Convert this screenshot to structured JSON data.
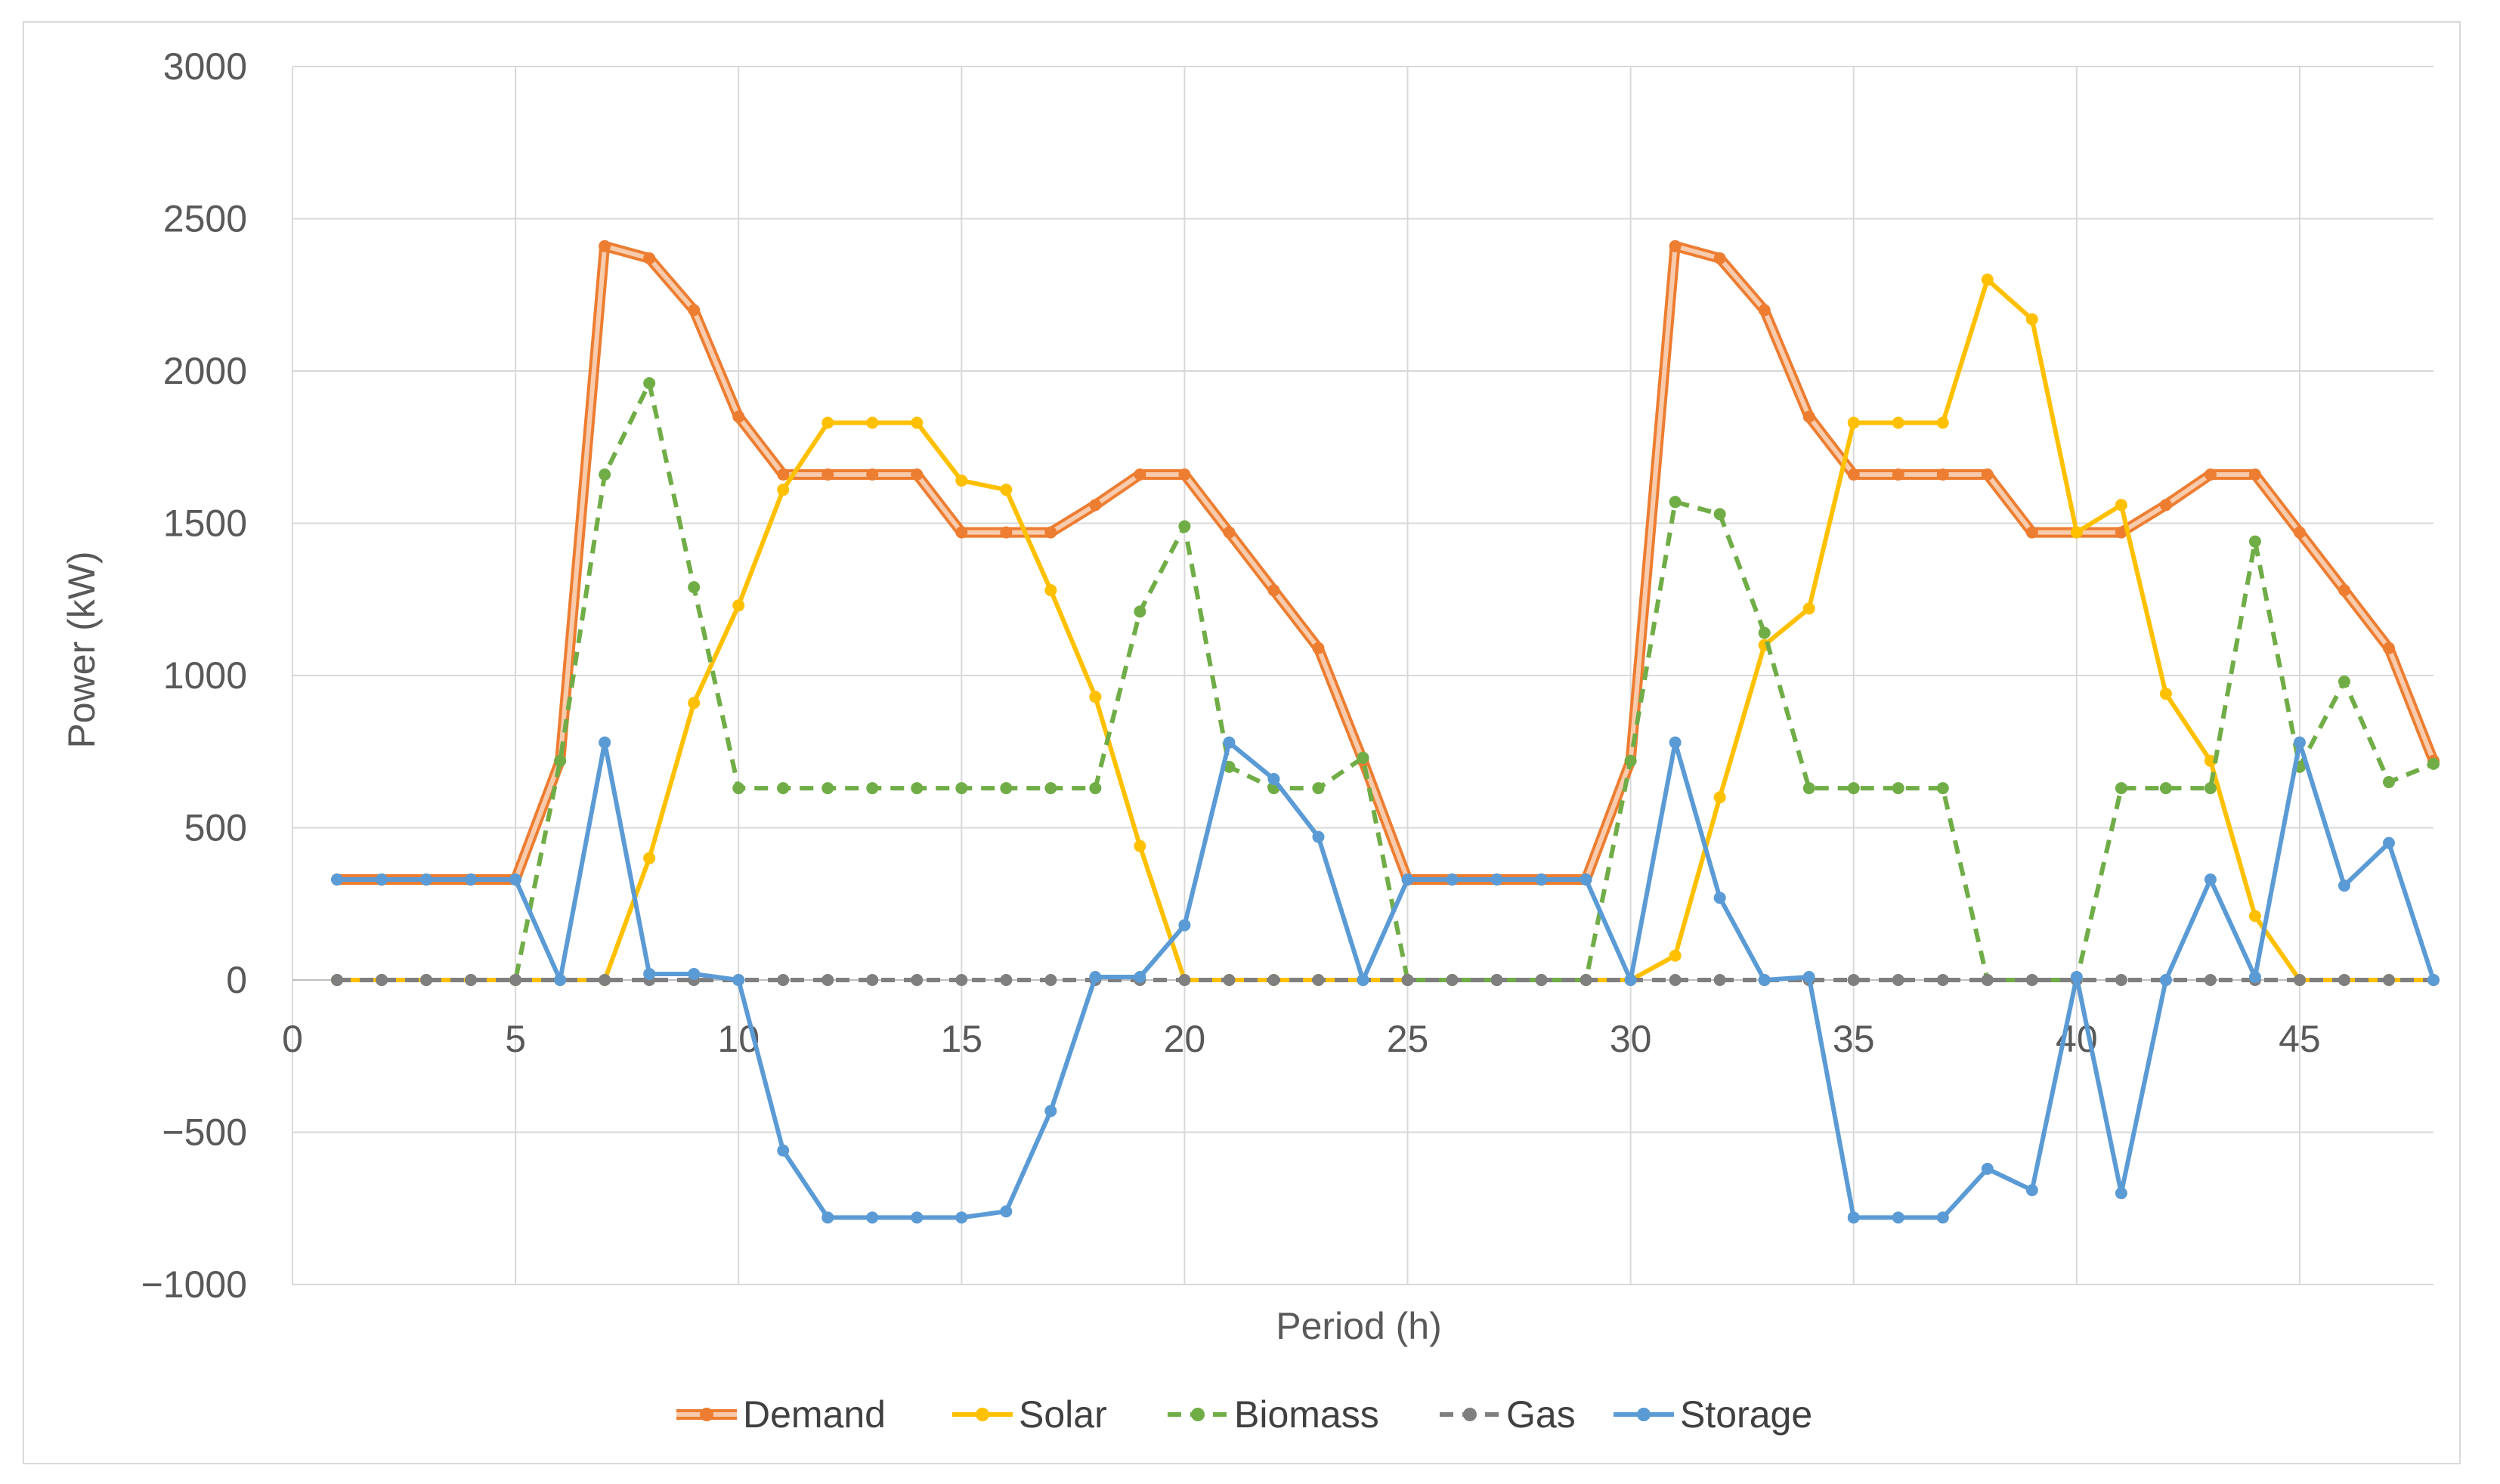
{
  "chart_data": {
    "type": "line",
    "title": "",
    "xlabel": "Period (h)",
    "ylabel": "Power (kW)",
    "xlim": [
      0,
      48
    ],
    "ylim": [
      -1000,
      3000
    ],
    "x_ticks": [
      0,
      5,
      10,
      15,
      20,
      25,
      30,
      35,
      40,
      45
    ],
    "y_ticks": [
      -1000,
      -500,
      0,
      500,
      1000,
      1500,
      2000,
      2500,
      3000
    ],
    "y_tick_labels": [
      "−1000",
      "−500",
      "0",
      "500",
      "1000",
      "1500",
      "2000",
      "2500",
      "3000"
    ],
    "grid": true,
    "legend_position": "bottom",
    "x": [
      1,
      2,
      3,
      4,
      5,
      6,
      7,
      8,
      9,
      10,
      11,
      12,
      13,
      14,
      15,
      16,
      17,
      18,
      19,
      20,
      21,
      22,
      23,
      24,
      25,
      26,
      27,
      28,
      29,
      30,
      31,
      32,
      33,
      34,
      35,
      36,
      37,
      38,
      39,
      40,
      41,
      42,
      43,
      44,
      45,
      46,
      47,
      48
    ],
    "series": [
      {
        "name": "Demand",
        "color": "#ed7d31",
        "style": "double",
        "values": [
          330,
          330,
          330,
          330,
          330,
          720,
          2410,
          2370,
          2200,
          1850,
          1660,
          1660,
          1660,
          1660,
          1470,
          1470,
          1470,
          1560,
          1660,
          1660,
          1470,
          1280,
          1090,
          720,
          330,
          330,
          330,
          330,
          330,
          720,
          2410,
          2370,
          2200,
          1850,
          1660,
          1660,
          1660,
          1660,
          1470,
          1470,
          1470,
          1560,
          1660,
          1660,
          1470,
          1280,
          1090,
          720
        ]
      },
      {
        "name": "Solar",
        "color": "#ffc000",
        "style": "solid",
        "values": [
          0,
          0,
          0,
          0,
          0,
          0,
          0,
          400,
          910,
          1230,
          1610,
          1830,
          1830,
          1830,
          1640,
          1610,
          1280,
          930,
          440,
          0,
          0,
          0,
          0,
          0,
          0,
          0,
          0,
          0,
          0,
          0,
          80,
          600,
          1100,
          1220,
          1830,
          1830,
          1830,
          2300,
          2170,
          1470,
          1560,
          940,
          720,
          210,
          0,
          0,
          0,
          0
        ]
      },
      {
        "name": "Biomass",
        "color": "#70ad47",
        "style": "dashed",
        "values": [
          0,
          0,
          0,
          0,
          0,
          720,
          1660,
          1960,
          1290,
          630,
          630,
          630,
          630,
          630,
          630,
          630,
          630,
          630,
          1210,
          1490,
          700,
          630,
          630,
          730,
          0,
          0,
          0,
          0,
          0,
          720,
          1570,
          1530,
          1140,
          630,
          630,
          630,
          630,
          0,
          0,
          0,
          630,
          630,
          630,
          1440,
          700,
          980,
          650,
          710
        ]
      },
      {
        "name": "Gas",
        "color": "#7f7f7f",
        "style": "dashed",
        "values": [
          0,
          0,
          0,
          0,
          0,
          0,
          0,
          0,
          0,
          0,
          0,
          0,
          0,
          0,
          0,
          0,
          0,
          0,
          0,
          0,
          0,
          0,
          0,
          0,
          0,
          0,
          0,
          0,
          0,
          0,
          0,
          0,
          0,
          0,
          0,
          0,
          0,
          0,
          0,
          0,
          0,
          0,
          0,
          0,
          0,
          0,
          0,
          0
        ]
      },
      {
        "name": "Storage",
        "color": "#5b9bd5",
        "style": "solid",
        "values": [
          330,
          330,
          330,
          330,
          330,
          0,
          780,
          20,
          20,
          0,
          -560,
          -780,
          -780,
          -780,
          -780,
          -760,
          -430,
          10,
          10,
          180,
          780,
          660,
          470,
          0,
          330,
          330,
          330,
          330,
          330,
          0,
          780,
          270,
          0,
          10,
          -780,
          -780,
          -780,
          -620,
          -690,
          10,
          -700,
          0,
          330,
          10,
          780,
          310,
          450,
          0
        ]
      }
    ]
  }
}
